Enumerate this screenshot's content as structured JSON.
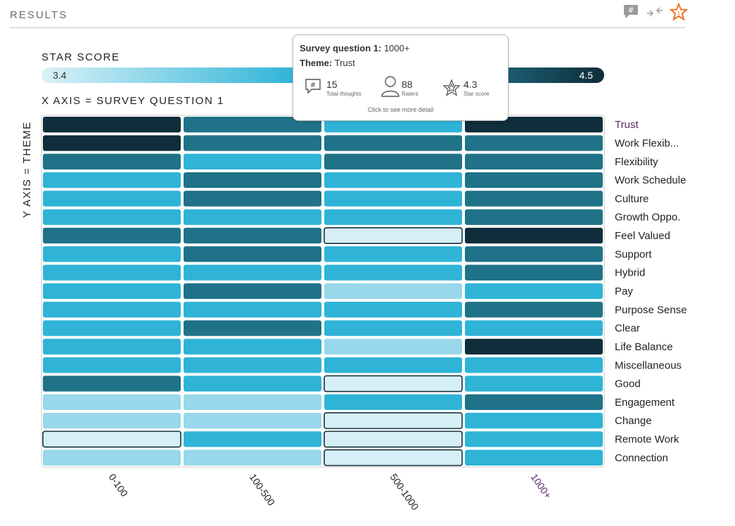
{
  "header": {
    "title": "RESULTS"
  },
  "toolbar": {
    "icons": [
      "hashtag-comment-icon",
      "compare-arrows-icon",
      "star-score-icon"
    ]
  },
  "scale": {
    "title": "STAR SCORE",
    "min_label": "3.4",
    "max_label": "4.5"
  },
  "colors": {
    "level1": "#d6eff7",
    "level2": "#98d8ea",
    "level3": "#2fb4d7",
    "level4": "#1f7288",
    "level5": "#0f2d3a",
    "selected_label": "#5b2a6e"
  },
  "tooltip": {
    "question_label": "Survey question 1:",
    "question_value": "1000+",
    "theme_label": "Theme:",
    "theme_value": "Trust",
    "thoughts_value": "15",
    "thoughts_label": "Total thoughts",
    "raters_value": "88",
    "raters_label": "Raters",
    "score_value": "4.3",
    "score_label": "Star score",
    "footer": "Click to see more detail"
  },
  "chart_data": {
    "type": "heatmap",
    "xlabel": "X AXIS = SURVEY QUESTION 1",
    "ylabel": "Y AXIS = THEME",
    "x_categories": [
      "0-100",
      "100-500",
      "500-1000",
      "1000+"
    ],
    "y_categories": [
      "Trust",
      "Work Flexib...",
      "Flexibility",
      "Work Schedule",
      "Culture",
      "Growth Oppo.",
      "Feel Valued",
      "Support",
      "Hybrid",
      "Pay",
      "Purpose Sense",
      "Clear",
      "Life Balance",
      "Miscellaneous",
      "Good",
      "Engagement",
      "Change",
      "Remote Work",
      "Connection"
    ],
    "value_levels": "1 = lowest star score, 5 = highest star score",
    "values": [
      [
        5,
        4,
        3,
        5
      ],
      [
        5,
        4,
        4,
        4
      ],
      [
        4,
        3,
        4,
        4
      ],
      [
        3,
        4,
        3,
        4
      ],
      [
        3,
        4,
        3,
        4
      ],
      [
        3,
        3,
        3,
        4
      ],
      [
        4,
        4,
        1,
        5
      ],
      [
        3,
        4,
        3,
        4
      ],
      [
        3,
        3,
        3,
        4
      ],
      [
        3,
        4,
        2,
        3
      ],
      [
        3,
        3,
        3,
        4
      ],
      [
        3,
        4,
        3,
        3
      ],
      [
        3,
        3,
        2,
        5
      ],
      [
        3,
        3,
        3,
        3
      ],
      [
        4,
        3,
        1,
        3
      ],
      [
        2,
        2,
        3,
        4
      ],
      [
        2,
        2,
        1,
        3
      ],
      [
        1,
        3,
        1,
        3
      ],
      [
        2,
        2,
        1,
        3
      ]
    ],
    "selected": {
      "x": "1000+",
      "y": "Trust"
    }
  }
}
